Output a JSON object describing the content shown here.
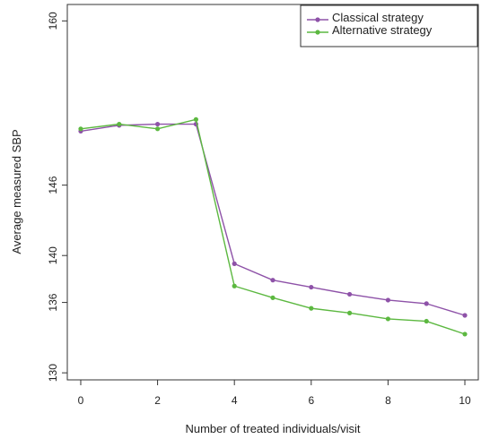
{
  "chart_data": {
    "type": "line",
    "xlabel": "Number of treated individuals/visit",
    "ylabel": "Average measured SBP",
    "x": [
      0,
      1,
      2,
      3,
      4,
      5,
      6,
      7,
      8,
      9,
      10
    ],
    "xlim": [
      -0.35,
      10.35
    ],
    "ylim": [
      129.4,
      161.4
    ],
    "x_ticks": [
      0,
      2,
      4,
      6,
      8,
      10
    ],
    "x_tick_labels": [
      "0",
      "2",
      "4",
      "6",
      "8",
      "10"
    ],
    "y_ticks": [
      130,
      136,
      140,
      146,
      160
    ],
    "y_tick_labels": [
      "130",
      "136",
      "140",
      "146",
      "160"
    ],
    "grid": false,
    "legend_position": "top-right",
    "series": [
      {
        "name": "Classical strategy",
        "color": "#8e52a8",
        "values": [
          150.6,
          151.1,
          151.2,
          151.2,
          139.3,
          137.9,
          137.3,
          136.7,
          136.2,
          135.9,
          134.9
        ]
      },
      {
        "name": "Alternative strategy",
        "color": "#5cb840",
        "values": [
          150.8,
          151.2,
          150.8,
          151.6,
          137.4,
          136.4,
          135.5,
          135.1,
          134.6,
          134.4,
          133.3
        ]
      }
    ]
  }
}
